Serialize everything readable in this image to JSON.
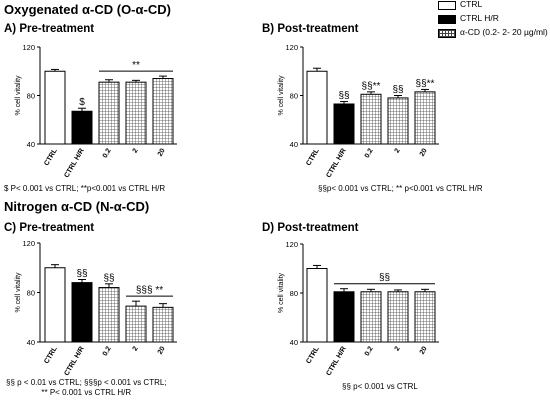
{
  "section_oxygenated": "Oxygenated α-CD (O-α-CD)",
  "section_nitrogen": "Nitrogen α-CD (N-α-CD)",
  "colors": {
    "ctrl_fill": "#ffffff",
    "hr_fill": "#000000",
    "cd_pattern": "grid",
    "stroke": "#000000"
  },
  "legend": {
    "entries": [
      {
        "label": "CTRL",
        "fill": "white"
      },
      {
        "label": "CTRL H/R",
        "fill": "black"
      },
      {
        "label": "α-CD (0.2- 2- 20 µg/ml)",
        "fill": "grid"
      }
    ]
  },
  "chart_data": [
    {
      "id": "A",
      "type": "bar",
      "title": "A) Pre-treatment",
      "ylabel": "% cell vitality",
      "ylim": [
        40,
        120
      ],
      "yticks": [
        40,
        80,
        120
      ],
      "categories": [
        "CTRL",
        "CTRL H/R",
        "0.2",
        "2",
        "20"
      ],
      "values": [
        100,
        67,
        91,
        91,
        94
      ],
      "errors": [
        1.5,
        2.5,
        2,
        1.5,
        2
      ],
      "bar_annotations": [
        "",
        "$",
        "",
        "",
        ""
      ],
      "brackets": [
        {
          "from": 2,
          "to": 4,
          "label": "**"
        }
      ],
      "footnote": "$ P< 0.001 vs CTRL; **p<0.001 vs CTRL H/R"
    },
    {
      "id": "B",
      "type": "bar",
      "title": "B) Post-treatment",
      "ylabel": "% cell vitality",
      "ylim": [
        40,
        120
      ],
      "yticks": [
        40,
        80,
        120
      ],
      "categories": [
        "CTRL",
        "CTRL H/R",
        "0.2",
        "2",
        "20"
      ],
      "values": [
        100,
        73,
        81,
        78,
        83
      ],
      "errors": [
        2.5,
        2,
        2,
        2,
        2
      ],
      "bar_annotations": [
        "",
        "§§",
        "§§**",
        "§§",
        "§§**"
      ],
      "brackets": [],
      "footnote": "§§p< 0.001 vs CTRL; ** p<0.001 vs CTRL H/R"
    },
    {
      "id": "C",
      "type": "bar",
      "title": "C) Pre-treatment",
      "ylabel": "% cell vitality",
      "ylim": [
        40,
        120
      ],
      "yticks": [
        40,
        80,
        120
      ],
      "categories": [
        "CTRL",
        "CTRL H/R",
        "0.2",
        "2",
        "20"
      ],
      "values": [
        100,
        88,
        84,
        69,
        68
      ],
      "errors": [
        2.5,
        2.5,
        3,
        4,
        3
      ],
      "bar_annotations": [
        "",
        "§§",
        "§§",
        "",
        ""
      ],
      "brackets": [
        {
          "from": 3,
          "to": 4,
          "label": "§§§ **"
        }
      ],
      "footnote": "§§ p < 0.01 vs CTRL; §§§p < 0.001 vs CTRL;\n** P< 0.001 vs CTRL H/R"
    },
    {
      "id": "D",
      "type": "bar",
      "title": "D) Post-treatment",
      "ylabel": "% cell vitality",
      "ylim": [
        40,
        120
      ],
      "yticks": [
        40,
        80,
        120
      ],
      "categories": [
        "CTRL",
        "CTRL H/R",
        "0.2",
        "2",
        "20"
      ],
      "values": [
        100,
        81,
        81,
        81,
        81
      ],
      "errors": [
        2.5,
        2.5,
        2,
        1.5,
        2
      ],
      "bar_annotations": [
        "",
        "",
        "",
        "",
        ""
      ],
      "brackets": [
        {
          "from": 1,
          "to": 4,
          "label": "§§"
        }
      ],
      "footnote": "§§ p< 0.001 vs CTRL"
    }
  ]
}
